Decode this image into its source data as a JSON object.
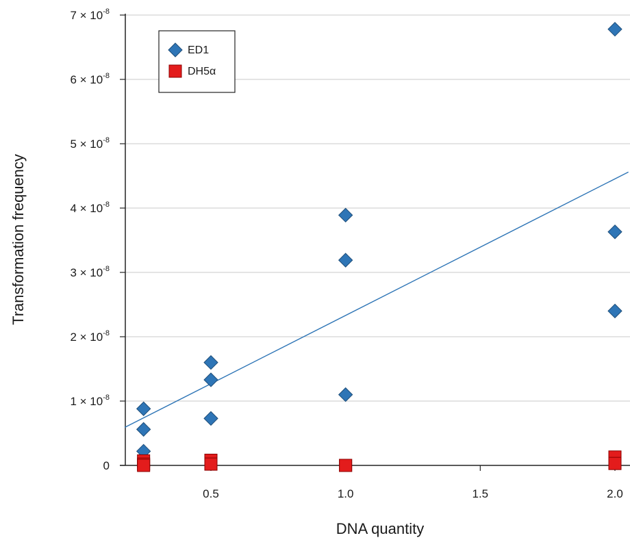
{
  "chart_data": {
    "type": "scatter",
    "xlabel": "DNA quantity",
    "ylabel": "Transformation frequency",
    "xlim": [
      0.18,
      2.05
    ],
    "ylim": [
      0,
      7e-08
    ],
    "x_ticks": [
      {
        "value": 0.5,
        "label": "0.5"
      },
      {
        "value": 1.0,
        "label": "1.0"
      },
      {
        "value": 1.5,
        "label": "1.5"
      },
      {
        "value": 2.0,
        "label": "2.0"
      }
    ],
    "y_ticks": [
      {
        "value": 0,
        "base": "0",
        "exp": ""
      },
      {
        "value": 1e-08,
        "base": "1 × 10",
        "exp": "-8"
      },
      {
        "value": 2e-08,
        "base": "2 × 10",
        "exp": "-8"
      },
      {
        "value": 3e-08,
        "base": "3 × 10",
        "exp": "-8"
      },
      {
        "value": 4e-08,
        "base": "4 × 10",
        "exp": "-8"
      },
      {
        "value": 5e-08,
        "base": "5 × 10",
        "exp": "-8"
      },
      {
        "value": 6e-08,
        "base": "6 × 10",
        "exp": "-8"
      },
      {
        "value": 7e-08,
        "base": "7 × 10",
        "exp": "-8"
      }
    ],
    "grid": "horizontal",
    "legend_position": "top-left",
    "series": [
      {
        "name": "ED1",
        "marker": "diamond",
        "color": "#2e75b6",
        "points": [
          {
            "x": 0.25,
            "y": 8.8e-09
          },
          {
            "x": 0.25,
            "y": 5.6e-09
          },
          {
            "x": 0.25,
            "y": 2.2e-09
          },
          {
            "x": 0.5,
            "y": 1.6e-08
          },
          {
            "x": 0.5,
            "y": 1.33e-08
          },
          {
            "x": 0.5,
            "y": 7.3e-09
          },
          {
            "x": 1.0,
            "y": 3.89e-08
          },
          {
            "x": 1.0,
            "y": 3.19e-08
          },
          {
            "x": 1.0,
            "y": 1.1e-08
          },
          {
            "x": 2.0,
            "y": 6.78e-08
          },
          {
            "x": 2.0,
            "y": 3.63e-08
          },
          {
            "x": 2.0,
            "y": 2.4e-08
          }
        ]
      },
      {
        "name": "DH5α",
        "marker": "square",
        "color": "#e31c1c",
        "points": [
          {
            "x": 0.25,
            "y": 7e-10
          },
          {
            "x": 0.25,
            "y": 2e-10
          },
          {
            "x": 0.25,
            "y": 0
          },
          {
            "x": 0.5,
            "y": 8e-10
          },
          {
            "x": 0.5,
            "y": 2e-10
          },
          {
            "x": 1.0,
            "y": 0
          },
          {
            "x": 1.0,
            "y": 0
          },
          {
            "x": 2.0,
            "y": 1.3e-09
          },
          {
            "x": 2.0,
            "y": 3e-10
          }
        ]
      }
    ],
    "trendline": {
      "series": "ED1",
      "color": "#2e75b6",
      "points": [
        {
          "x": 0.18,
          "y": 5.9e-09
        },
        {
          "x": 2.05,
          "y": 4.56e-08
        }
      ]
    }
  }
}
